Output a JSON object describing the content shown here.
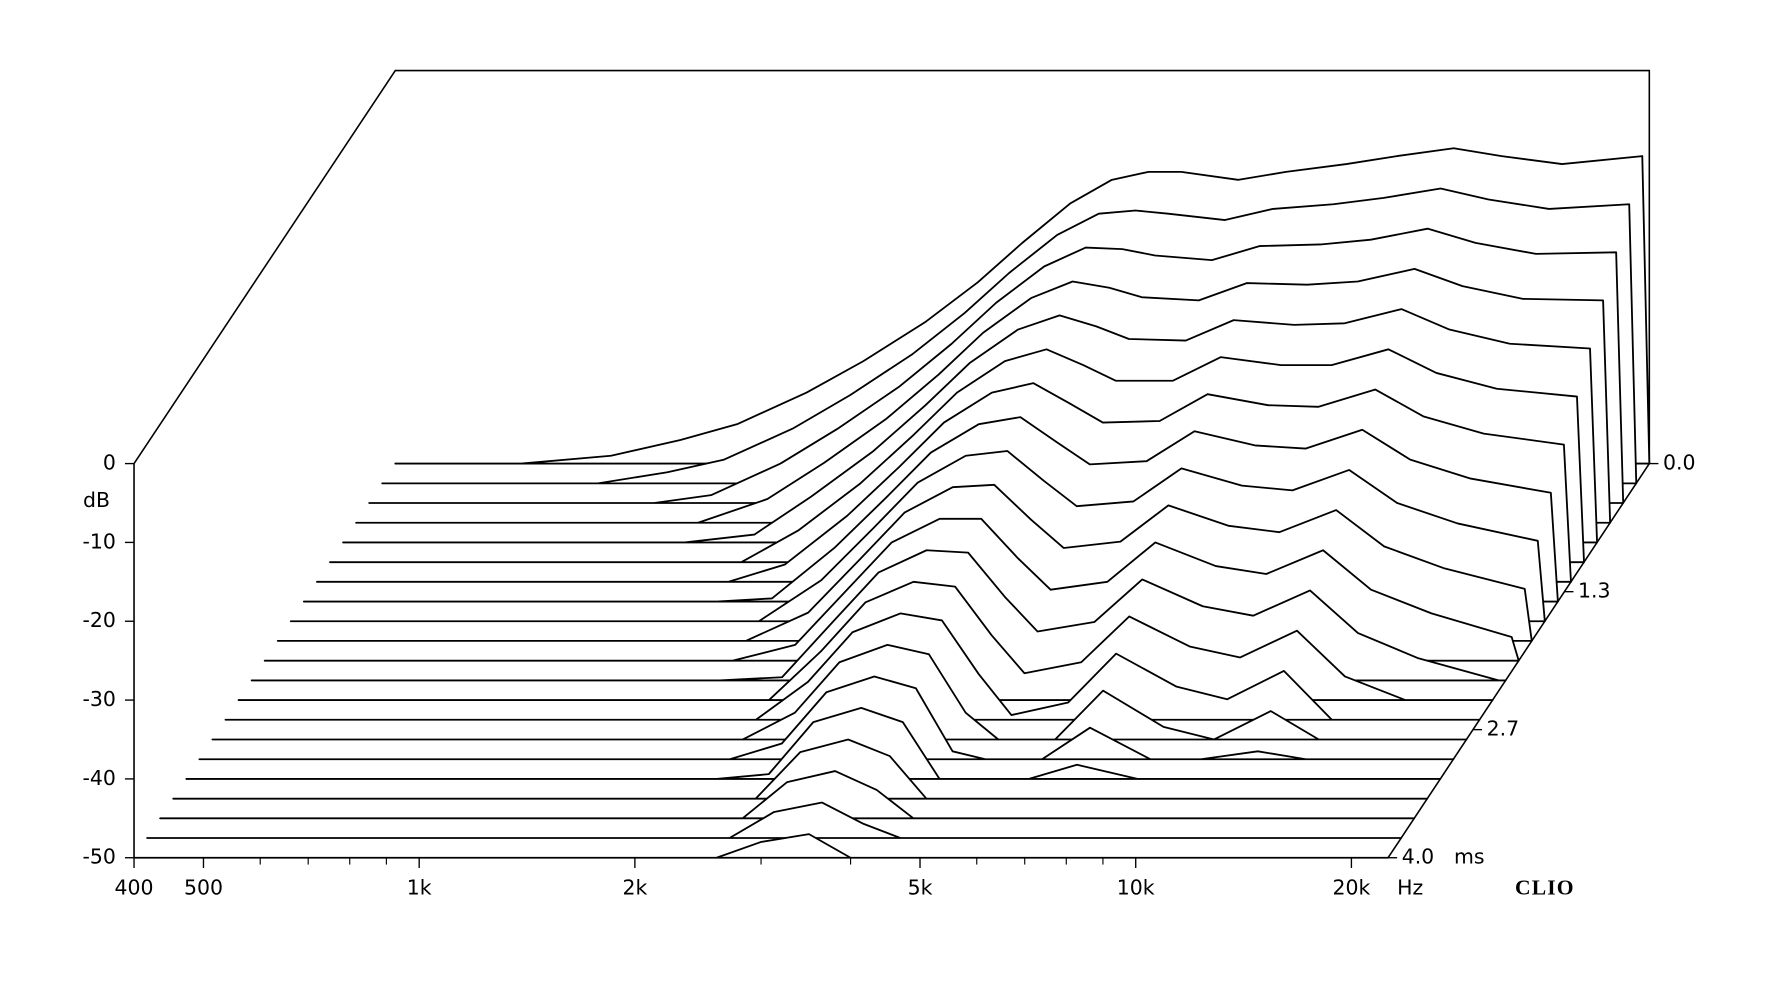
{
  "chart_data": {
    "type": "waterfall",
    "x_label": "Hz",
    "y_label": "dB",
    "z_label": "ms",
    "watermark": "CLIO",
    "color": "#000000",
    "fill": "#ffffff",
    "log_x": true,
    "xlim": [
      400,
      22500
    ],
    "ylim": [
      -50,
      0
    ],
    "zlim": [
      0,
      4
    ],
    "xticks": [
      400,
      500,
      {
        "value": 1000,
        "label": "1k"
      },
      {
        "value": 2000,
        "label": "2k"
      },
      {
        "value": 5000,
        "label": "5k"
      },
      {
        "value": 10000,
        "label": "10k"
      },
      {
        "value": 20000,
        "label": "20k"
      }
    ],
    "xminorticks": [
      600,
      700,
      800,
      900,
      3000,
      4000,
      6000,
      7000,
      8000,
      9000
    ],
    "yticks": [
      0,
      -10,
      -20,
      -30,
      -40,
      -50
    ],
    "zticks": [
      {
        "value": 0,
        "label": "0.0"
      },
      1.3,
      2.7,
      {
        "value": 4,
        "label": "4.0"
      }
    ],
    "x": [
      400,
      600,
      800,
      1000,
      1200,
      1500,
      1800,
      2200,
      2600,
      3000,
      3500,
      4000,
      4500,
      5000,
      6000,
      7000,
      8500,
      10000,
      12000,
      14000,
      17000,
      22000
    ],
    "z": [
      0,
      0.2,
      0.4,
      0.6,
      0.8,
      1.0,
      1.2,
      1.4,
      1.6,
      1.8,
      2.0,
      2.2,
      2.4,
      2.6,
      2.8,
      3.0,
      3.2,
      3.4,
      3.6,
      3.8,
      4.0
    ],
    "values": [
      [
        -50,
        -50,
        -50,
        -50,
        -50,
        -50,
        -50,
        -50,
        -50,
        -50,
        -50,
        -50,
        -50,
        -50,
        -50,
        -50,
        -50,
        -50,
        -50,
        -50,
        -50
      ],
      [
        -50,
        -50,
        -50,
        -50,
        -50,
        -50,
        -50,
        -50,
        -50,
        -50,
        -50,
        -50,
        -50,
        -50,
        -50,
        -50,
        -50,
        -50,
        -50,
        -50,
        -50
      ],
      [
        -49,
        -50,
        -50,
        -50,
        -50,
        -50,
        -50,
        -50,
        -50,
        -50,
        -50,
        -50,
        -50,
        -50,
        -50,
        -50,
        -50,
        -50,
        -50,
        -50,
        -50
      ],
      [
        -47,
        -48.6,
        -50,
        -50,
        -50,
        -50,
        -50,
        -50,
        -50,
        -50,
        -50,
        -50,
        -50,
        -50,
        -50,
        -50,
        -50,
        -50,
        -50,
        -50,
        -50
      ],
      [
        -45,
        -47,
        -49,
        -50,
        -50,
        -50,
        -50,
        -50,
        -50,
        -50,
        -50,
        -50,
        -50,
        -50,
        -50,
        -50,
        -50,
        -50,
        -50,
        -50,
        -50
      ],
      [
        -41,
        -43,
        -45,
        -47,
        -49,
        -50,
        -50,
        -50,
        -50,
        -50,
        -50,
        -50,
        -50,
        -50,
        -50,
        -50,
        -50,
        -50,
        -50,
        -50,
        -50
      ],
      [
        -37,
        -38.8,
        -40.6,
        -42.4,
        -44.2,
        -46,
        -47.8,
        -49.6,
        -50,
        -50,
        -50,
        -50,
        -50,
        -50,
        -50,
        -50,
        -50,
        -50,
        -50,
        -50,
        -50
      ],
      [
        -32,
        -33.6,
        -35.2,
        -36.8,
        -38.4,
        -40,
        -41.6,
        -43.2,
        -44.8,
        -46.4,
        -48,
        -49.6,
        -50,
        -50,
        -50,
        -50,
        -50,
        -50,
        -50,
        -50,
        -50
      ],
      [
        -27,
        -28.4,
        -29.8,
        -31.2,
        -32.6,
        -34,
        -35.4,
        -36.8,
        -38.2,
        -39.6,
        -41,
        -42.4,
        -43.8,
        -45.2,
        -46.6,
        -48,
        -49.4,
        -50,
        -50,
        -50,
        -50
      ],
      [
        -22,
        -23.3,
        -24.6,
        -25.9,
        -27.2,
        -28.5,
        -29.8,
        -31.1,
        -32.4,
        -33.7,
        -35,
        -36.3,
        -37.6,
        -38.9,
        -40.2,
        -41.5,
        -42.8,
        -44.1,
        -45.4,
        -46.7,
        -48
      ],
      [
        -17,
        -18.5,
        -20,
        -21.5,
        -23,
        -24.5,
        -26,
        -27.5,
        -29,
        -30.5,
        -32,
        -33.5,
        -35,
        -36.5,
        -38,
        -39.5,
        -41,
        -42.5,
        -44,
        -45.5,
        -47
      ],
      [
        -14,
        -15.8,
        -17.6,
        -19.4,
        -21.2,
        -23,
        -24.8,
        -26.6,
        -28.4,
        -30.2,
        -32,
        -33.8,
        -35.6,
        -37.4,
        -39.2,
        -41,
        -42.8,
        -44.6,
        -46.4,
        -48.2,
        -50
      ],
      [
        -13,
        -15.4,
        -17.8,
        -20.2,
        -22.6,
        -25,
        -27.4,
        -29.8,
        -32.2,
        -34.6,
        -37,
        -39.4,
        -41.8,
        -44.2,
        -46.6,
        -49,
        -50,
        -50,
        -50,
        -50,
        -50
      ],
      [
        -13,
        -15.8,
        -18.6,
        -21.4,
        -24.2,
        -27,
        -29.8,
        -32.6,
        -35.4,
        -38.2,
        -41,
        -43.8,
        -46.6,
        -49.4,
        -50,
        -50,
        -50,
        -50,
        -50,
        -50,
        -50
      ],
      [
        -14,
        -16.6,
        -19.2,
        -21.8,
        -24.4,
        -27,
        -29.6,
        -32.2,
        -34.8,
        -37.4,
        -40,
        -42.6,
        -45.2,
        -47.8,
        -50,
        -50,
        -50,
        -50,
        -50,
        -50,
        -50
      ],
      [
        -13,
        -15.2,
        -17.4,
        -19.6,
        -21.8,
        -24,
        -26.2,
        -28.4,
        -30.6,
        -32.8,
        -35,
        -37.2,
        -39.4,
        -41.6,
        -43.8,
        -46,
        -48.2,
        -50,
        -50,
        -50,
        -50
      ],
      [
        -12,
        -14.6,
        -17.2,
        -19.8,
        -22.4,
        -25,
        -27.6,
        -30.2,
        -32.8,
        -35.4,
        -38,
        -40.6,
        -43.2,
        -45.8,
        -48.4,
        -50,
        -50,
        -50,
        -50,
        -50,
        -50
      ],
      [
        -11,
        -13.8,
        -16.6,
        -19.4,
        -22.2,
        -25,
        -27.8,
        -30.6,
        -33.4,
        -36.2,
        -39,
        -41.8,
        -44.6,
        -47.4,
        -50,
        -50,
        -50,
        -50,
        -50,
        -50,
        -50
      ],
      [
        -10,
        -12.6,
        -15.2,
        -17.8,
        -20.4,
        -23,
        -25.6,
        -28.2,
        -30.8,
        -33.4,
        -36,
        -38.6,
        -41.2,
        -43.8,
        -46.4,
        -49,
        -50,
        -50,
        -50,
        -50,
        -50
      ],
      [
        -11,
        -14,
        -17,
        -20,
        -23,
        -26,
        -29,
        -32,
        -35,
        -38,
        -41,
        -44,
        -47,
        -50,
        -50,
        -50,
        -50,
        -50,
        -50,
        -50,
        -50
      ],
      [
        -12,
        -15.2,
        -18.4,
        -21.6,
        -24.8,
        -28,
        -31.2,
        -34.4,
        -37.6,
        -40.8,
        -44,
        -47.2,
        -50,
        -50,
        -50,
        -50,
        -50,
        -50,
        -50,
        -50,
        -50
      ],
      [
        -11,
        -14.6,
        -18.2,
        -21.8,
        -25.4,
        -29,
        -32.6,
        -36.2,
        -39.8,
        -43.4,
        -47,
        -50,
        -50,
        -50,
        -50,
        -50,
        -50,
        -50,
        -50,
        -50,
        -50
      ]
    ]
  }
}
